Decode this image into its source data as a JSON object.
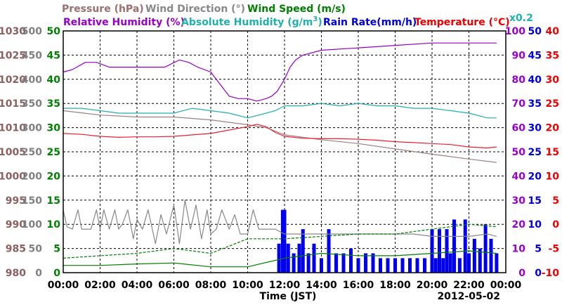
{
  "chart_data": {
    "type": "line",
    "date_label": "2012-05-02",
    "xlabel": "Time (JST)",
    "x_ticks": [
      "00:00",
      "02:00",
      "04:00",
      "06:00",
      "08:00",
      "10:00",
      "12:00",
      "14:00",
      "16:00",
      "18:00",
      "20:00",
      "22:00",
      "00:00"
    ],
    "axes": {
      "pressure": {
        "ticks": [
          "1030",
          "1025",
          "1020",
          "1015",
          "1010",
          "1005",
          "1000",
          "995",
          "990",
          "985",
          "980"
        ],
        "range": [
          980,
          1030
        ],
        "color": "#8b6060"
      },
      "wind_dir": {
        "ticks": [
          "500",
          "450",
          "400",
          "350",
          "300",
          "250",
          "200",
          "150",
          "100",
          "50",
          "0"
        ],
        "range": [
          0,
          500
        ],
        "color": "#808080"
      },
      "wind_speed": {
        "ticks": [
          "50",
          "45",
          "40",
          "35",
          "30",
          "25",
          "20",
          "15",
          "10",
          "5",
          "0"
        ],
        "range": [
          0,
          50
        ],
        "color": "#008000"
      },
      "humidity": {
        "ticks": [
          "100",
          "90",
          "80",
          "70",
          "60",
          "50",
          "40",
          "30",
          "20",
          "10",
          "0"
        ],
        "range": [
          0,
          100
        ],
        "color": "#9900cc"
      },
      "rain": {
        "ticks": [
          "50",
          "45",
          "40",
          "35",
          "30",
          "25",
          "20",
          "15",
          "10",
          "5",
          "0"
        ],
        "range": [
          0,
          50
        ],
        "color": "#0000dd"
      },
      "temperature": {
        "ticks": [
          "40",
          "35",
          "30",
          "25",
          "20",
          "15",
          "10",
          "5",
          "0",
          "-5",
          "-10"
        ],
        "range": [
          -10,
          40
        ],
        "color": "#ee0000"
      }
    },
    "legend": [
      {
        "label": "Pressure (hPa)",
        "color": "#9b7070"
      },
      {
        "label": "Wind Direction (°)",
        "color": "#888888"
      },
      {
        "label": "Wind Speed (m/s)",
        "color": "#008000"
      },
      {
        "label": "Relative Humidity (%)",
        "color": "#9900cc"
      },
      {
        "label": "Absolute Humidity (g/m",
        "sup": "3",
        "close": ")",
        "color": "#20b0b0",
        "scale_note": "x0.2"
      },
      {
        "label": "Rain Rate(mm/h)",
        "color": "#0000dd"
      },
      {
        "label": "Temperature (°C)",
        "color": "#ee0000"
      }
    ],
    "series": [
      {
        "name": "Pressure",
        "axis": "pressure",
        "color": "#a08080",
        "x": [
          0,
          2,
          4,
          6,
          8,
          10,
          11,
          12,
          14,
          16,
          18,
          20,
          22,
          23.5
        ],
        "y": [
          1013.5,
          1012.6,
          1012.2,
          1012.2,
          1011.6,
          1010.6,
          1010.0,
          1008.5,
          1007.5,
          1006.7,
          1005.6,
          1004.5,
          1003.5,
          1002.8
        ]
      },
      {
        "name": "Relative Humidity",
        "axis": "humidity",
        "color": "#9900cc",
        "x": [
          0,
          0.5,
          1.2,
          1.8,
          2.5,
          3.5,
          4.5,
          5.5,
          6.3,
          6.8,
          7.3,
          8.0,
          8.5,
          9.0,
          9.5,
          10.0,
          10.5,
          11.0,
          11.3,
          11.6,
          12.0,
          12.3,
          12.6,
          13.0,
          14.0,
          16.0,
          18.0,
          20.0,
          22.0,
          23.5
        ],
        "y": [
          83,
          84,
          87,
          87,
          85,
          85,
          85,
          85,
          88,
          87,
          85,
          83,
          78,
          73,
          72,
          72,
          71,
          72,
          73,
          75,
          80,
          85,
          88,
          90,
          92,
          93,
          94,
          95,
          95,
          95
        ]
      },
      {
        "name": "Absolute Humidity",
        "axis": "humidity",
        "color": "#20b0b0",
        "x": [
          0,
          1,
          2,
          3,
          4,
          5,
          6,
          7,
          8,
          9,
          10,
          11,
          11.5,
          12,
          13,
          14,
          15,
          16,
          17,
          18,
          19,
          20,
          21,
          22,
          23,
          23.5
        ],
        "y": [
          68,
          68,
          67,
          66,
          66,
          66,
          66,
          68,
          67,
          66,
          64,
          66,
          67,
          69,
          69,
          70,
          69,
          70,
          69,
          69,
          68,
          68,
          67,
          66,
          64,
          64
        ]
      },
      {
        "name": "Temperature",
        "axis": "temperature",
        "color": "#ee2030",
        "x": [
          0,
          1,
          2,
          3,
          4,
          5,
          6,
          7,
          8,
          9,
          10,
          10.5,
          11,
          11.5,
          12,
          13,
          14,
          15,
          16,
          17,
          18,
          19,
          20,
          21,
          22,
          23,
          23.5
        ],
        "y": [
          18.8,
          18.6,
          18.2,
          18.0,
          18.1,
          18.1,
          18.2,
          18.5,
          18.8,
          19.5,
          20.2,
          20.7,
          20.2,
          19.0,
          18.2,
          17.8,
          17.7,
          17.7,
          17.6,
          17.4,
          17.1,
          16.9,
          16.7,
          16.5,
          16.0,
          15.8,
          16.0
        ]
      },
      {
        "name": "Wind Direction",
        "axis": "wind_dir",
        "color": "#888888",
        "x": [
          0,
          0.2,
          0.5,
          0.8,
          1.0,
          1.5,
          1.8,
          2.0,
          2.2,
          2.5,
          2.8,
          3.0,
          3.2,
          3.5,
          3.8,
          4.0,
          4.3,
          4.6,
          5.0,
          5.3,
          5.6,
          6.0,
          6.3,
          6.6,
          6.9,
          7.2,
          7.5,
          7.8,
          8.0,
          8.3,
          8.6,
          9.0,
          9.3,
          9.6,
          10.0,
          10.3,
          10.6,
          11.0,
          11.5,
          12.0,
          12.5,
          13.0,
          13.5,
          14.0,
          15.0,
          16.0,
          17.0,
          18.0,
          19.0,
          20.0,
          21.0,
          22.0,
          23.0,
          23.5
        ],
        "y": [
          130,
          95,
          90,
          130,
          90,
          90,
          130,
          90,
          130,
          90,
          130,
          90,
          100,
          130,
          70,
          110,
          90,
          130,
          60,
          120,
          80,
          140,
          60,
          150,
          90,
          140,
          70,
          130,
          80,
          90,
          130,
          90,
          120,
          80,
          80,
          130,
          90,
          90,
          90,
          80,
          80,
          80,
          80,
          80,
          80,
          80,
          80,
          80,
          80,
          75,
          75,
          75,
          80,
          75
        ]
      },
      {
        "name": "Wind Speed (avg)",
        "axis": "wind_speed",
        "color": "#008000",
        "x": [
          0,
          2,
          4,
          6,
          8,
          10,
          12,
          14,
          16,
          18,
          20,
          22,
          23.5
        ],
        "y": [
          1.5,
          1.5,
          1.8,
          2.0,
          1.2,
          1.2,
          3.0,
          4.0,
          3.5,
          3.5,
          4.0,
          4.5,
          4.0
        ]
      },
      {
        "name": "Wind Speed (gust)",
        "axis": "wind_speed",
        "color": "#008000",
        "dashed": true,
        "x": [
          0,
          2,
          4,
          6,
          8,
          10,
          12,
          14,
          16,
          18,
          20,
          22,
          23.5
        ],
        "y": [
          3.0,
          3.5,
          4.0,
          5.0,
          4.0,
          7.0,
          7.0,
          7.5,
          8.0,
          8.0,
          9.0,
          10.0,
          9.5
        ]
      }
    ],
    "rain_bars": {
      "axis": "rain",
      "color": "#0000ee",
      "x": [
        11.7,
        11.9,
        12.0,
        12.2,
        12.5,
        12.8,
        13.0,
        13.3,
        13.6,
        14.0,
        14.4,
        14.8,
        15.2,
        15.6,
        16.0,
        16.4,
        16.8,
        17.2,
        17.6,
        18.0,
        18.4,
        18.8,
        19.2,
        19.6,
        20.0,
        20.2,
        20.4,
        20.6,
        20.8,
        21.0,
        21.2,
        21.5,
        21.8,
        22.0,
        22.3,
        22.6,
        22.9,
        23.2,
        23.5
      ],
      "y": [
        6,
        13,
        13,
        6,
        4,
        6,
        9,
        4,
        6,
        3,
        9,
        4,
        4,
        5,
        3,
        4,
        4,
        3,
        3,
        3,
        3,
        3,
        3,
        3,
        9,
        3,
        9,
        3,
        9,
        4,
        11,
        3,
        11,
        4,
        7,
        5,
        10,
        7,
        4
      ]
    }
  }
}
